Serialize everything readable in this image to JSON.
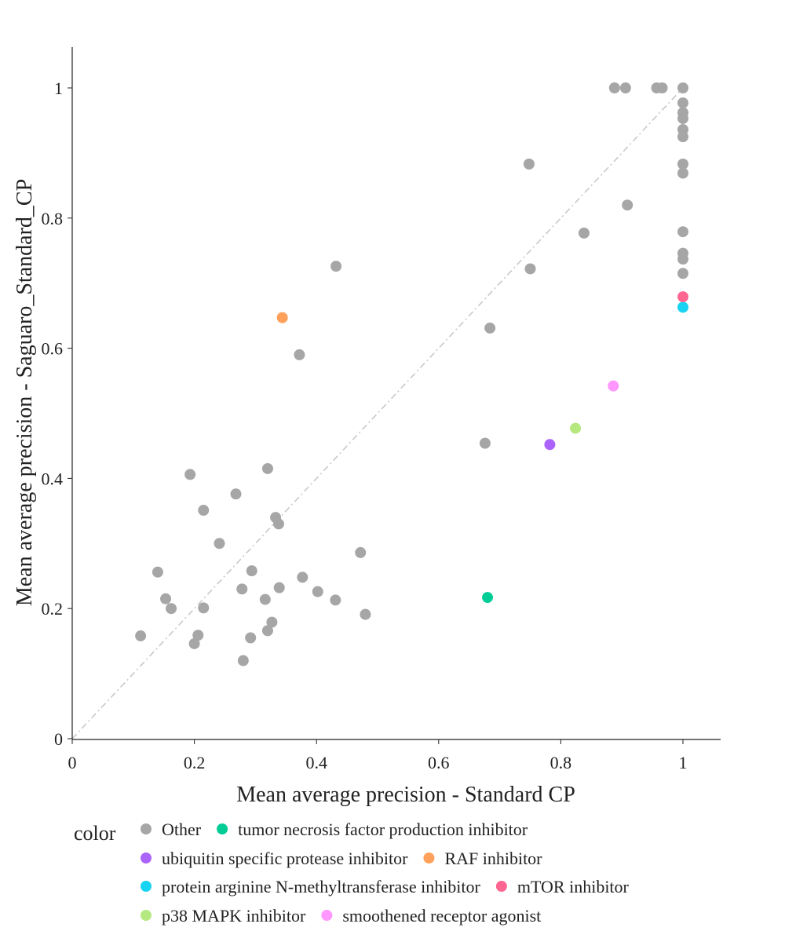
{
  "chart_data": {
    "type": "scatter",
    "xlabel": "Mean average precision - Standard CP",
    "ylabel": "Mean average precision - Saguaro_Standard_CP",
    "xlim": [
      0,
      1.06
    ],
    "ylim": [
      0,
      1.06
    ],
    "xticks": [
      0,
      0.2,
      0.4,
      0.6,
      0.8,
      1
    ],
    "yticks": [
      0,
      0.2,
      0.4,
      0.6,
      0.8,
      1
    ],
    "xtick_labels": [
      "0",
      "0.2",
      "0.4",
      "0.6",
      "0.8",
      "1"
    ],
    "ytick_labels": [
      "0",
      "0.2",
      "0.4",
      "0.6",
      "0.8",
      "1"
    ],
    "reference_line": "y = x (dash-dot, light gray)",
    "grid": false,
    "legend": {
      "title": "color",
      "placement": "bottom",
      "entries": [
        {
          "name": "Other",
          "color": "#a6a6a6"
        },
        {
          "name": "tumor necrosis factor production inhibitor",
          "color": "#00cc96"
        },
        {
          "name": "ubiquitin specific protease inhibitor",
          "color": "#ab63fa"
        },
        {
          "name": "RAF inhibitor",
          "color": "#ffa15a"
        },
        {
          "name": "protein arginine N-methyltransferase inhibitor",
          "color": "#19d3f3"
        },
        {
          "name": "mTOR inhibitor",
          "color": "#ff6692"
        },
        {
          "name": "p38 MAPK inhibitor",
          "color": "#b6e880"
        },
        {
          "name": "smoothened receptor agonist",
          "color": "#ff97ff"
        }
      ]
    },
    "series": [
      {
        "name": "Other",
        "color": "#a6a6a6",
        "points": [
          [
            0.888,
            1.0
          ],
          [
            0.906,
            1.0
          ],
          [
            0.957,
            1.0
          ],
          [
            0.966,
            1.0
          ],
          [
            1.0,
            1.0
          ],
          [
            1.0,
            0.977
          ],
          [
            1.0,
            0.962
          ],
          [
            1.0,
            0.953
          ],
          [
            1.0,
            0.936
          ],
          [
            1.0,
            0.925
          ],
          [
            1.0,
            0.883
          ],
          [
            1.0,
            0.869
          ],
          [
            1.0,
            0.779
          ],
          [
            1.0,
            0.746
          ],
          [
            1.0,
            0.737
          ],
          [
            1.0,
            0.715
          ],
          [
            0.748,
            0.883
          ],
          [
            0.909,
            0.82
          ],
          [
            0.838,
            0.777
          ],
          [
            0.75,
            0.722
          ],
          [
            0.684,
            0.631
          ],
          [
            0.676,
            0.454
          ],
          [
            0.432,
            0.726
          ],
          [
            0.372,
            0.59
          ],
          [
            0.193,
            0.406
          ],
          [
            0.32,
            0.415
          ],
          [
            0.268,
            0.376
          ],
          [
            0.215,
            0.351
          ],
          [
            0.333,
            0.34
          ],
          [
            0.338,
            0.33
          ],
          [
            0.241,
            0.3
          ],
          [
            0.472,
            0.286
          ],
          [
            0.14,
            0.256
          ],
          [
            0.294,
            0.258
          ],
          [
            0.377,
            0.248
          ],
          [
            0.278,
            0.23
          ],
          [
            0.339,
            0.232
          ],
          [
            0.402,
            0.226
          ],
          [
            0.153,
            0.215
          ],
          [
            0.316,
            0.214
          ],
          [
            0.431,
            0.213
          ],
          [
            0.162,
            0.2
          ],
          [
            0.215,
            0.201
          ],
          [
            0.48,
            0.191
          ],
          [
            0.327,
            0.179
          ],
          [
            0.32,
            0.166
          ],
          [
            0.206,
            0.159
          ],
          [
            0.292,
            0.155
          ],
          [
            0.112,
            0.158
          ],
          [
            0.2,
            0.146
          ],
          [
            0.28,
            0.12
          ]
        ]
      },
      {
        "name": "tumor necrosis factor production inhibitor",
        "color": "#00cc96",
        "points": [
          [
            0.68,
            0.217
          ]
        ]
      },
      {
        "name": "ubiquitin specific protease inhibitor",
        "color": "#ab63fa",
        "points": [
          [
            0.782,
            0.452
          ]
        ]
      },
      {
        "name": "RAF inhibitor",
        "color": "#ffa15a",
        "points": [
          [
            0.344,
            0.647
          ]
        ]
      },
      {
        "name": "protein arginine N-methyltransferase inhibitor",
        "color": "#19d3f3",
        "points": [
          [
            1.0,
            0.663
          ]
        ]
      },
      {
        "name": "mTOR inhibitor",
        "color": "#ff6692",
        "points": [
          [
            1.0,
            0.679
          ]
        ]
      },
      {
        "name": "p38 MAPK inhibitor",
        "color": "#b6e880",
        "points": [
          [
            0.824,
            0.477
          ]
        ]
      },
      {
        "name": "smoothened receptor agonist",
        "color": "#ff97ff",
        "points": [
          [
            0.886,
            0.542
          ]
        ]
      }
    ]
  }
}
